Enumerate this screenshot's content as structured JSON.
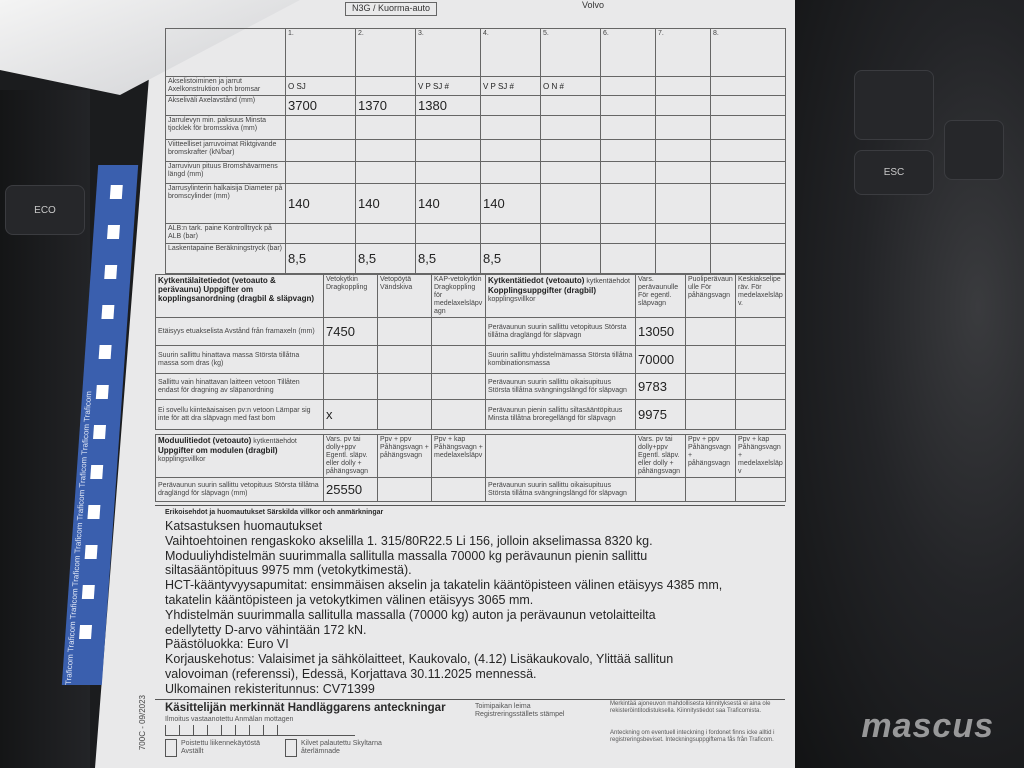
{
  "dashboard": {
    "eco_label": "ECO",
    "esc_label": "ESC"
  },
  "header": {
    "vehicle_class": "N3G / Kuorma-auto",
    "make": "Volvo",
    "col_numbers": [
      "1.",
      "2.",
      "3.",
      "4.",
      "5.",
      "6.",
      "7.",
      "8."
    ]
  },
  "strip_text": "Traficom Traficom Traficom Traficom Traficom Traficom Traficom Traficom Traficom",
  "form_code": "700C - 09/2023",
  "axle_table": {
    "rows": [
      {
        "label": "Akselistoiminen ja jarrut Axelkonstruktion och bromsar",
        "values": [
          "O SJ",
          "",
          "V P SJ #",
          "V P SJ #",
          "O N #"
        ]
      },
      {
        "label": "Akseliväli Axelavstånd (mm)",
        "values": [
          "3700",
          "1370",
          "1380",
          ""
        ]
      },
      {
        "label": "Jarrulevyn min. paksuus Minsta tjocklek för bromsskiva (mm)",
        "values": [
          "",
          "",
          "",
          ""
        ]
      },
      {
        "label": "Viitteelliset jarruvoimat Riktgivande bromskrafter (kN/bar)",
        "values": [
          "",
          "",
          "",
          ""
        ]
      },
      {
        "label": "Jarruvivun pituus Bromshävarmens längd (mm)",
        "values": [
          "",
          "",
          "",
          ""
        ]
      },
      {
        "label": "Jarrusylinterin halkaisija Diameter på bromscylinder (mm)",
        "values": [
          "140",
          "140",
          "140",
          "140"
        ]
      },
      {
        "label": "ALB:n tark. paine Kontrolltryck på ALB (bar)",
        "values": [
          "",
          "",
          "",
          ""
        ]
      },
      {
        "label": "Laskentapaine Beräkningstryck (bar)",
        "values": [
          "8,5",
          "8,5",
          "8,5",
          "8,5"
        ]
      }
    ]
  },
  "coupling": {
    "title": "Kytkentälaitetiedot (vetoauto & perävaunu) Uppgifter om kopplingsanordning (dragbil & släpvagn)",
    "cols": [
      "Vetokytkin Dragkoppling",
      "Vetopöytä Vändskiva",
      "KAP-vetokytkin Dragkoppling för medelaxelsläpvagn"
    ],
    "right_title": "Kytkentätiedot (vetoauto)",
    "right_title2": "Kopplingsuppgifter (dragbil)",
    "right_sub_fi": "kytkentäehdot",
    "right_sub_sv": "kopplingsvillkor",
    "right_cols": [
      "Vars. perävaunulle För egentl. släpvagn",
      "Puoliperävaunulle För påhängsvagn",
      "Keskiakseliperäv. För medelaxelsläpv."
    ],
    "rows": [
      {
        "label": "Etäisyys etuakselista Avstånd från framaxeln (mm)",
        "value": "7450",
        "right_label": "Perävaunun suurin sallittu vetopituus Största tillåtna draglängd för släpvagn",
        "right_value": "13050"
      },
      {
        "label": "Suurin sallittu hinattava massa Största tillåtna massa som dras (kg)",
        "value": "",
        "right_label": "Suurin sallittu yhdistelmämassa Största tillåtna kombinationsmassa",
        "right_value": "70000"
      },
      {
        "label": "Sallittu vain hinattavan laitteen vetoon Tillåten endast för dragning av släpanordning",
        "value": "",
        "right_label": "Perävaunun suurin sallittu oikaisupituus Största tillåtna svängningslängd för släpvagn",
        "right_value": "9783"
      },
      {
        "label": "Ei sovellu kiinteäaisaisen pv:n vetoon Lämpar sig inte för att dra släpvagn med fast bom",
        "value": "x",
        "right_label": "Perävaunun pienin sallittu siltasääntöpituus Minsta tillåtna broregellängd för släpvagn",
        "right_value": "9975"
      }
    ]
  },
  "module": {
    "title": "Moduulitiedot (vetoauto)",
    "title2": "Uppgifter om modulen (dragbil)",
    "sub_fi": "kytkentäehdot",
    "sub_sv": "kopplingsvillkor",
    "cols": [
      "Vars. pv tai dolly+ppv Egentl. släpv. eller dolly + påhängsvagn",
      "Ppv + ppv Påhängsvagn + påhängsvagn",
      "Ppv + kap Påhängsvagn + medelaxelsläpv"
    ],
    "row_label": "Perävaunun suurin sallittu vetopituus Största tillåtna draglängd för släpvagn (mm)",
    "row_value": "25550",
    "right_label": "Perävaunun suurin sallittu oikaisupituus Största tillåtna svängningslängd för släpvagn"
  },
  "notes": {
    "title": "Erikoisehdot ja huomautukset Särskilda villkor och anmärkningar",
    "lines": [
      "Katsastuksen huomautukset",
      "Vaihtoehtoinen rengaskoko akselilla 1. 315/80R22.5 Li 156, jolloin akselimassa 8320 kg.",
      "Moduuliyhdistelmän suurimmalla sallitulla massalla 70000 kg perävaunun pienin sallittu",
      "siltasääntöpituus 9975 mm (vetokytkimestä).",
      "HCT-kääntyvyysapumitat: ensimmäisen akselin ja takatelin kääntöpisteen välinen etäisyys 4385 mm,",
      "takatelin kääntöpisteen ja vetokytkimen välinen etäisyys 3065 mm.",
      "Yhdistelmän suurimmalla sallitulla massalla (70000 kg) auton ja perävaunun vetolaitteilta",
      "edellytetty D-arvo vähintään 172 kN.",
      "Päästöluokka: Euro VI",
      "Korjauskehotus: Valaisimet ja sähkölaitteet, Kaukovalo, (4.12) Lisäkaukovalo, Ylittää sallitun",
      "valovoiman (referenssi), Edessä, Korjattava 30.11.2025 mennessä.",
      "Ulkomainen rekisteritunnus: CV71399"
    ]
  },
  "handler": {
    "title": "Käsittelijän merkinnät Handläggarens anteckningar",
    "received": "Ilmoitus vastaanotettu Anmälan mottagen",
    "stamp": "Toimipaikan leima Registreringsställets stämpel",
    "checkbox1": "Poistettu liikennekäytöstä Avställt",
    "checkbox2": "Kilvet palautettu Skyltarna återlämnade",
    "note_fi": "Merkintää ajoneuvon mahdollisesta kiinnityksestä ei aina ole rekisteröintitodistuksella. Kiinnitystiedot saa Traficomista.",
    "note_sv": "Anteckning om eventuell inteckning i fordonet finns icke alltid i registreringsbeviset. Inteckningsuppgifterna fås från Traficom."
  },
  "watermark": "mascus"
}
